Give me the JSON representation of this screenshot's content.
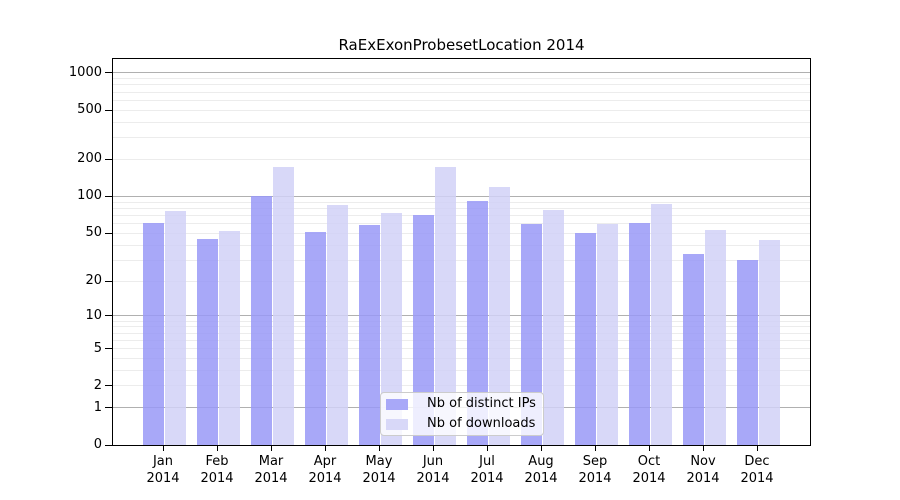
{
  "figure": {
    "title": "RaExExonProbesetLocation 2014",
    "background": "#ffffff"
  },
  "chart_data": {
    "type": "bar",
    "title": "RaExExonProbesetLocation 2014",
    "categories": [
      "Jan 2014",
      "Feb 2014",
      "Mar 2014",
      "Apr 2014",
      "May 2014",
      "Jun 2014",
      "Jul 2014",
      "Aug 2014",
      "Sep 2014",
      "Oct 2014",
      "Nov 2014",
      "Dec 2014"
    ],
    "series": [
      {
        "name": "Nb of distinct IPs",
        "color": "#a8a8f8",
        "values": [
          61,
          45,
          100,
          51,
          59,
          71,
          91,
          60,
          50,
          61,
          34,
          30
        ]
      },
      {
        "name": "Nb of downloads",
        "color": "#d8d8f8",
        "values": [
          76,
          52,
          175,
          85,
          73,
          175,
          119,
          78,
          60,
          87,
          53,
          44
        ]
      }
    ],
    "y_axis": {
      "scale": "log1p",
      "ticks": [
        0,
        1,
        2,
        5,
        10,
        20,
        50,
        100,
        200,
        500,
        1000
      ],
      "top_value": 1290
    },
    "x_axis": {
      "tick_label_style": "two-line month over year"
    },
    "legend": {
      "position": "lower center",
      "entries": [
        "Nb of distinct IPs",
        "Nb of downloads"
      ]
    },
    "grid": {
      "on": true,
      "minor_color": "#ececec",
      "major_color": "#b0b0b0",
      "major_at": [
        1,
        10,
        100,
        1000
      ]
    },
    "frame": {
      "spine_color": "#000000"
    }
  }
}
